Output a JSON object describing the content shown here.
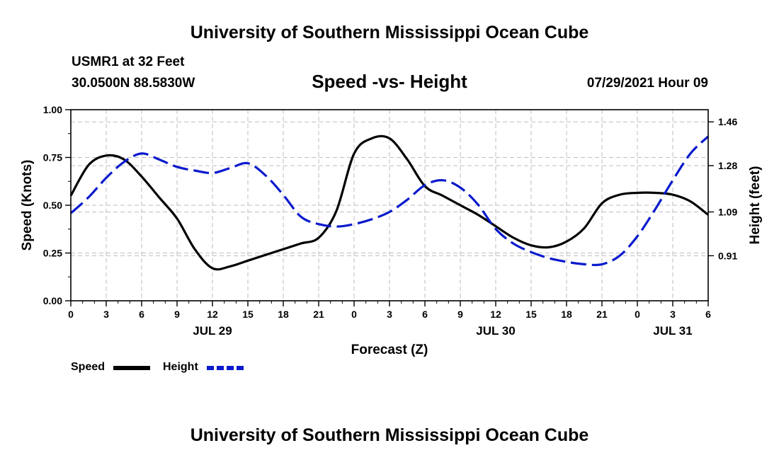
{
  "page": {
    "title_top": "University of Southern Mississippi Ocean Cube",
    "title_bottom": "University of Southern Mississippi Ocean Cube",
    "station": "USMR1 at 32 Feet",
    "coords": "30.0500N  88.5830W",
    "subtitle": "Speed -vs- Height",
    "datetime": "07/29/2021 Hour 09"
  },
  "chart_data": {
    "type": "line",
    "title": "Speed -vs- Height",
    "xlabel": "Forecast (Z)",
    "ylabel_left": "Speed (Knots)",
    "ylabel_right": "Height (feet)",
    "x_range_hours": [
      0,
      54
    ],
    "x_tick_step_hours": 3,
    "x_tick_labels": [
      "0",
      "3",
      "6",
      "9",
      "12",
      "15",
      "18",
      "21",
      "0",
      "3",
      "6",
      "9",
      "12",
      "15",
      "18",
      "21",
      "0",
      "3",
      "6"
    ],
    "date_labels": [
      {
        "label": "JUL 29",
        "hour": 12
      },
      {
        "label": "JUL 30",
        "hour": 36
      },
      {
        "label": "JUL 31",
        "hour": 51
      }
    ],
    "y_left_range": [
      0,
      1.0
    ],
    "y_left_ticks": [
      "0.00",
      "0.25",
      "0.50",
      "0.75",
      "1.00"
    ],
    "y_right_range": [
      0.725,
      1.51
    ],
    "y_right_ticks": [
      {
        "label": "0.91",
        "value": 0.91
      },
      {
        "label": "1.09",
        "value": 1.09
      },
      {
        "label": "1.28",
        "value": 1.28
      },
      {
        "label": "1.46",
        "value": 1.46
      }
    ],
    "grid": true,
    "series": [
      {
        "name": "Speed",
        "axis": "left",
        "color": "#000000",
        "style": "solid",
        "x": [
          0,
          1.5,
          3,
          4.5,
          6,
          7.5,
          9,
          10.5,
          12,
          13.5,
          15,
          16.5,
          18,
          19.5,
          21,
          22.5,
          24,
          25.5,
          27,
          28.5,
          30,
          31.5,
          33,
          34.5,
          36,
          37.5,
          39,
          40.5,
          42,
          43.5,
          45,
          46.5,
          48,
          49.5,
          51,
          52.5,
          54
        ],
        "values": [
          0.55,
          0.71,
          0.76,
          0.74,
          0.65,
          0.54,
          0.43,
          0.27,
          0.17,
          0.18,
          0.21,
          0.24,
          0.27,
          0.3,
          0.33,
          0.47,
          0.77,
          0.85,
          0.85,
          0.74,
          0.6,
          0.55,
          0.5,
          0.45,
          0.39,
          0.33,
          0.29,
          0.28,
          0.31,
          0.38,
          0.51,
          0.555,
          0.565,
          0.565,
          0.555,
          0.52,
          0.45
        ]
      },
      {
        "name": "Height",
        "axis": "right",
        "color": "#0a1acc",
        "style": "dashed",
        "x": [
          0,
          1.5,
          3,
          4.5,
          6,
          7.5,
          9,
          10.5,
          12,
          13.5,
          15,
          16.5,
          18,
          19.5,
          21,
          22.5,
          24,
          25.5,
          27,
          28.5,
          30,
          31.5,
          33,
          34.5,
          36,
          37.5,
          39,
          40.5,
          42,
          43.5,
          45,
          46.5,
          48,
          49.5,
          51,
          52.5,
          54
        ],
        "values": [
          1.085,
          1.15,
          1.23,
          1.295,
          1.33,
          1.305,
          1.275,
          1.26,
          1.25,
          1.27,
          1.29,
          1.24,
          1.16,
          1.07,
          1.04,
          1.03,
          1.04,
          1.06,
          1.09,
          1.14,
          1.2,
          1.22,
          1.19,
          1.12,
          1.02,
          0.96,
          0.925,
          0.9,
          0.885,
          0.875,
          0.875,
          0.91,
          0.99,
          1.1,
          1.22,
          1.33,
          1.4
        ]
      }
    ],
    "legend": [
      {
        "label": "Speed",
        "color": "#000000",
        "style": "solid"
      },
      {
        "label": "Height",
        "color": "#0a1acc",
        "style": "dashed"
      }
    ],
    "legend_position": "bottom-left"
  }
}
